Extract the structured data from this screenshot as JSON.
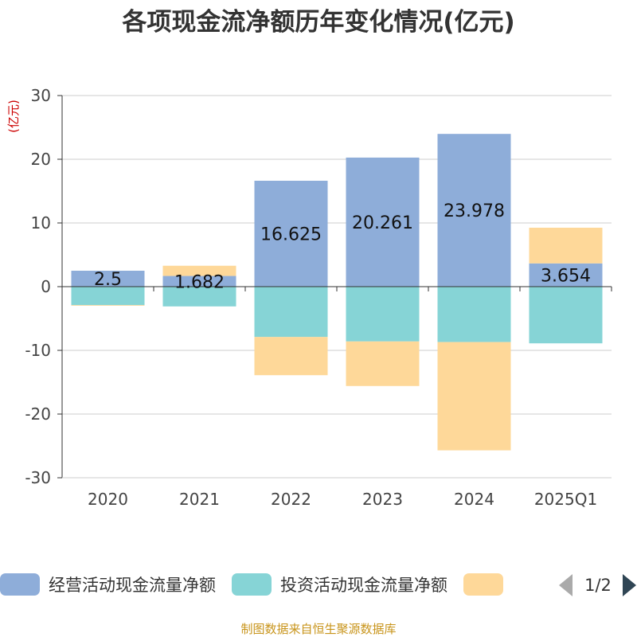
{
  "title": "各项现金流净额历年变化情况(亿元)",
  "source": "制图数据来自恒生聚源数据库",
  "colors": {
    "title": "#333333",
    "unit": "#cc0000",
    "source": "#c8941a",
    "grid": "#cccccc",
    "axis": "#333333"
  },
  "legend": {
    "page_indicator": "1/2",
    "prev_icon": "triangle-left-icon",
    "next_icon": "triangle-right-icon"
  },
  "chart_data": {
    "type": "bar",
    "stacked": true,
    "title": "各项现金流净额历年变化情况(亿元)",
    "ylabel": "(亿元)",
    "xlabel": "",
    "ylim": [
      -30,
      30
    ],
    "yticks": [
      30,
      20,
      10,
      0,
      -10,
      -20,
      -30
    ],
    "grid": true,
    "legend_position": "bottom",
    "categories": [
      "2020",
      "2021",
      "2022",
      "2023",
      "2024",
      "2025Q1"
    ],
    "series": [
      {
        "name": "经营活动现金流量净额",
        "color": "#8eadd9",
        "values": [
          2.5,
          1.682,
          16.625,
          20.261,
          23.978,
          3.654
        ],
        "labels": [
          "2.5",
          "1.682",
          "16.625",
          "20.261",
          "23.978",
          "3.654"
        ]
      },
      {
        "name": "投资活动现金流量净额",
        "color": "#86d4d6",
        "values": [
          -2.9,
          -3.1,
          -7.9,
          -8.6,
          -8.7,
          -8.9
        ]
      },
      {
        "name": "",
        "color": "#fed899",
        "values": [
          -0.1,
          1.6,
          -6.0,
          -7.0,
          -17.0,
          5.6
        ]
      }
    ]
  }
}
